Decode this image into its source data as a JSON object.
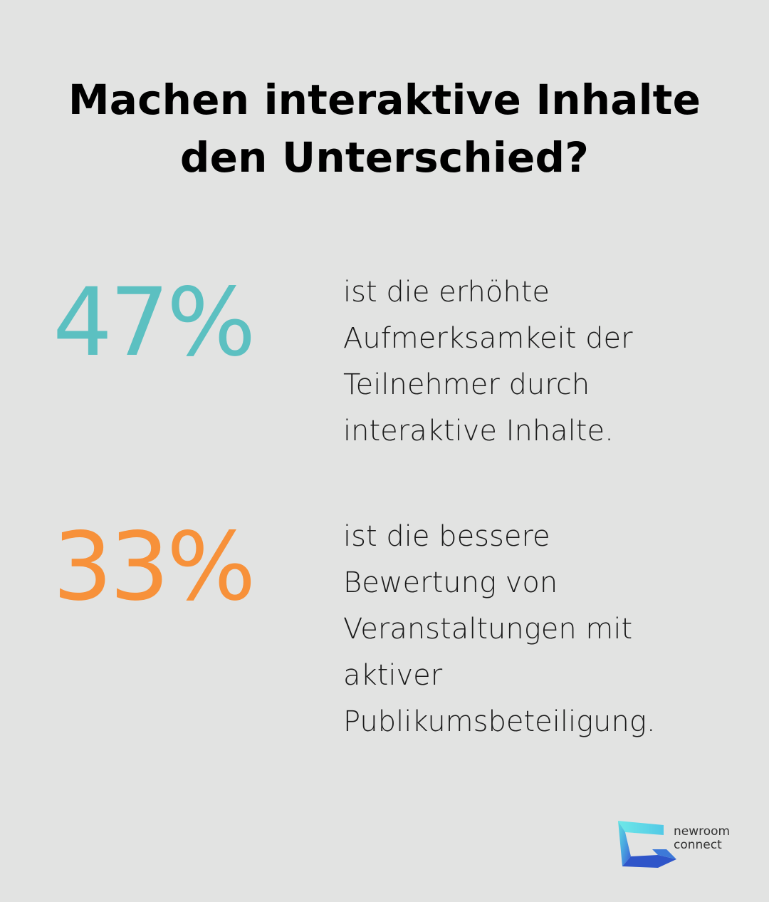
{
  "title_line1": "Machen interaktive Inhalte",
  "title_line2": "den Unterschied?",
  "stats": [
    {
      "value": "47%",
      "color": "#5cc0c1",
      "text": "ist die erhöhte\nAufmerksamkeit der\nTeilnehmer durch\ninteraktive Inhalte."
    },
    {
      "value": "33%",
      "color": "#f7913a",
      "text": "ist die bessere\nBewertung von\nVeranstaltungen mit\naktiver\nPublikumsbeteiligung."
    }
  ],
  "logo": {
    "line1": "newroom",
    "line2": "connect",
    "icon": "newroom-connect-logo-icon"
  },
  "colors": {
    "background": "#e2e3e2",
    "accent_teal": "#5cc0c1",
    "accent_orange": "#f7913a"
  }
}
